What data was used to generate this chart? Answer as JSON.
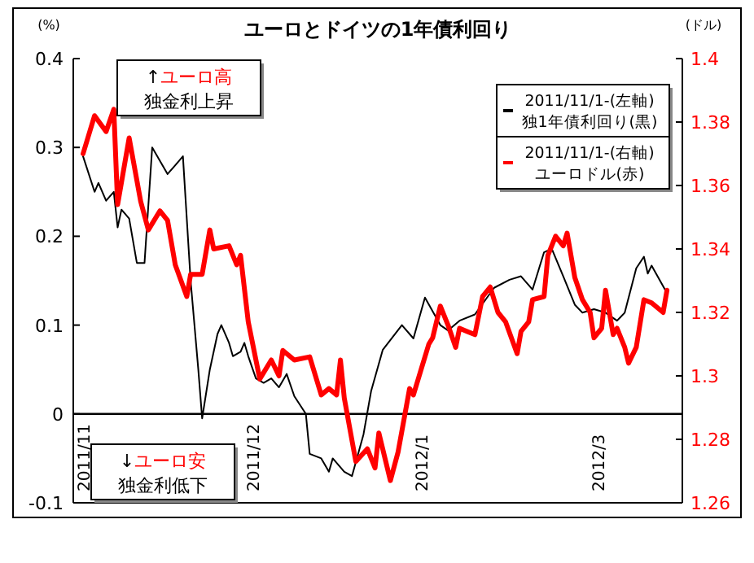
{
  "chart_data": {
    "type": "line",
    "title": "ユーロとドイツの1年債利回り",
    "ylabel": "(%)",
    "y2label": "(ドル)",
    "categories": [
      "2011/11",
      null,
      null,
      null,
      null,
      null,
      null,
      null,
      null,
      null,
      null,
      null,
      null,
      null,
      null,
      null,
      null,
      null,
      null,
      null,
      null,
      null,
      null,
      null,
      null,
      null,
      null,
      null,
      null,
      null,
      null,
      null,
      null,
      null,
      null,
      null,
      null,
      null,
      null,
      null,
      null,
      null,
      null,
      null,
      "2011/12",
      null,
      null,
      null,
      null,
      null,
      null,
      null,
      null,
      null,
      null,
      null,
      null,
      null,
      null,
      null,
      null,
      null,
      null,
      null,
      null,
      null,
      null,
      null,
      null,
      null,
      null,
      null,
      null,
      null,
      null,
      null,
      null,
      null,
      null,
      null,
      null,
      null,
      null,
      null,
      null,
      null,
      null,
      null,
      "2012/1",
      null,
      null,
      null,
      null,
      null,
      null,
      null,
      null,
      null,
      null,
      null,
      null,
      null,
      null,
      null,
      null,
      null,
      null,
      null,
      null,
      null,
      null,
      null,
      null,
      null,
      null,
      null,
      null,
      null,
      null,
      null,
      null,
      null,
      null,
      null,
      null,
      null,
      null,
      null,
      null,
      null,
      null,
      null,
      null,
      null,
      "2012/3",
      null,
      null,
      null,
      null,
      null,
      null,
      null,
      null,
      null,
      null,
      null,
      null,
      null,
      null,
      null,
      null,
      null,
      null,
      null,
      null,
      null,
      null
    ],
    "ylim": [
      -0.1,
      0.4
    ],
    "yticks": [
      -0.1,
      0,
      0.1,
      0.2,
      0.3,
      0.4
    ],
    "y2lim": [
      1.26,
      1.4
    ],
    "y2ticks": [
      1.26,
      1.28,
      1.3,
      1.32,
      1.34,
      1.36,
      1.38,
      1.4
    ],
    "ref_lines": [
      {
        "axis": "y",
        "value": 0,
        "color": "#000000"
      }
    ],
    "legend": "top right",
    "annotations": [
      "↑ユーロ高",
      "独金利上昇",
      "↓ユーロ安",
      "独金利低下"
    ],
    "series": [
      {
        "name": "2011/11/1-(左軸)\n独1年債利回り(黒)",
        "color": "#000000",
        "values": [
          0.29,
          null,
          null,
          0.25,
          0.26,
          null,
          0.24,
          null,
          0.25,
          0.21,
          0.23,
          null,
          0.22,
          null,
          0.17,
          null,
          0.17,
          null,
          0.3,
          null,
          null,
          null,
          0.27,
          null,
          0.28,
          null,
          0.29,
          null,
          0.15,
          null,
          0.05,
          -0.005,
          null,
          0.05,
          null,
          0.09,
          0.1,
          null,
          0.08,
          0.065,
          null,
          0.07,
          0.08,
          0.065,
          null,
          0.04,
          null,
          0.035,
          null,
          0.04,
          null,
          0.03,
          null,
          0.045,
          null,
          0.02,
          null,
          null,
          0,
          -0.045,
          null,
          null,
          -0.05,
          null,
          -0.065,
          -0.05,
          null,
          null,
          -0.065,
          null,
          -0.07,
          null,
          null,
          -0.023,
          null,
          0.026,
          null,
          null,
          0.072,
          null,
          null,
          null,
          null,
          0.1,
          null,
          null,
          0.085,
          null,
          null,
          0.131,
          null,
          null,
          null,
          0.1,
          null,
          0.094,
          null,
          null,
          0.105,
          null,
          null,
          null,
          0.112,
          null,
          null,
          null,
          null,
          0.142,
          null,
          null,
          null,
          0.151,
          null,
          null,
          0.155,
          null,
          null,
          0.14,
          null,
          null,
          0.182,
          null,
          0.186,
          null,
          null,
          0.155,
          null,
          null,
          0.123,
          null,
          0.114,
          null,
          null,
          0.118,
          null,
          null,
          0.114,
          null,
          null,
          0.105,
          null,
          0.114,
          null,
          null,
          0.164,
          null,
          0.177,
          0.158,
          0.167,
          null,
          null,
          null,
          0.136,
          null,
          null,
          null,
          null
        ]
      },
      {
        "name": "2011/11/1-(右軸)\nユーロドル(赤)",
        "color": "#ff0000",
        "axis": "y2",
        "values": [
          1.37,
          null,
          null,
          1.382,
          null,
          null,
          1.377,
          null,
          1.384,
          1.354,
          null,
          null,
          1.375,
          null,
          null,
          1.355,
          null,
          1.346,
          null,
          null,
          1.352,
          null,
          1.349,
          null,
          1.335,
          null,
          null,
          1.325,
          1.332,
          null,
          null,
          1.332,
          null,
          1.346,
          1.34,
          null,
          null,
          null,
          1.341,
          null,
          1.335,
          1.338,
          null,
          1.317,
          null,
          null,
          1.299,
          null,
          null,
          1.305,
          null,
          1.3,
          1.308,
          null,
          null,
          1.305,
          null,
          null,
          null,
          1.306,
          null,
          null,
          1.294,
          null,
          1.296,
          null,
          1.294,
          1.305,
          1.293,
          null,
          null,
          1.273,
          null,
          null,
          1.277,
          null,
          1.271,
          1.282,
          null,
          null,
          1.267,
          null,
          1.276,
          null,
          null,
          1.296,
          1.294,
          null,
          1.302,
          null,
          1.31,
          1.312,
          null,
          1.322,
          null,
          1.316,
          null,
          1.309,
          1.315,
          null,
          1.314,
          null,
          1.313,
          null,
          1.325,
          null,
          1.328,
          null,
          1.32,
          null,
          1.317,
          null,
          null,
          1.307,
          1.314,
          null,
          1.317,
          1.324,
          null,
          null,
          1.325,
          1.338,
          null,
          1.344,
          null,
          1.341,
          1.345,
          1.338,
          1.331,
          null,
          1.324,
          null,
          1.32,
          1.312,
          null,
          1.315,
          1.327,
          null,
          1.313,
          1.315,
          null,
          1.309,
          1.304,
          null,
          1.309,
          null,
          1.324,
          null,
          1.323,
          null,
          null,
          1.32,
          1.327,
          null,
          null,
          null,
          null
        ]
      }
    ]
  }
}
